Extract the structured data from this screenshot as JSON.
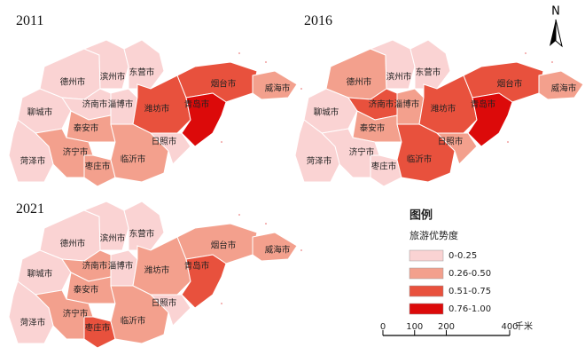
{
  "maps": [
    {
      "year": "2011",
      "cities": [
        {
          "name": "德州市",
          "class": 0
        },
        {
          "name": "滨州市",
          "class": 0
        },
        {
          "name": "东营市",
          "class": 0
        },
        {
          "name": "聊城市",
          "class": 0
        },
        {
          "name": "济南市",
          "class": 0
        },
        {
          "name": "淄博市",
          "class": 0
        },
        {
          "name": "潍坊市",
          "class": 2
        },
        {
          "name": "烟台市",
          "class": 2
        },
        {
          "name": "威海市",
          "class": 1
        },
        {
          "name": "青岛市",
          "class": 3
        },
        {
          "name": "泰安市",
          "class": 1
        },
        {
          "name": "济宁市",
          "class": 1
        },
        {
          "name": "枣庄市",
          "class": 1
        },
        {
          "name": "临沂市",
          "class": 1
        },
        {
          "name": "日照市",
          "class": 0
        },
        {
          "name": "菏泽市",
          "class": 0
        }
      ]
    },
    {
      "year": "2016",
      "cities": [
        {
          "name": "德州市",
          "class": 1
        },
        {
          "name": "滨州市",
          "class": 0
        },
        {
          "name": "东营市",
          "class": 0
        },
        {
          "name": "聊城市",
          "class": 0
        },
        {
          "name": "济南市",
          "class": 2
        },
        {
          "name": "淄博市",
          "class": 1
        },
        {
          "name": "潍坊市",
          "class": 2
        },
        {
          "name": "烟台市",
          "class": 2
        },
        {
          "name": "威海市",
          "class": 1
        },
        {
          "name": "青岛市",
          "class": 3
        },
        {
          "name": "泰安市",
          "class": 1
        },
        {
          "name": "济宁市",
          "class": 0
        },
        {
          "name": "枣庄市",
          "class": 0
        },
        {
          "name": "临沂市",
          "class": 2
        },
        {
          "name": "日照市",
          "class": 1
        },
        {
          "name": "菏泽市",
          "class": 0
        }
      ]
    },
    {
      "year": "2021",
      "cities": [
        {
          "name": "德州市",
          "class": 0
        },
        {
          "name": "滨州市",
          "class": 0
        },
        {
          "name": "东营市",
          "class": 0
        },
        {
          "name": "聊城市",
          "class": 0
        },
        {
          "name": "济南市",
          "class": 1
        },
        {
          "name": "淄博市",
          "class": 0
        },
        {
          "name": "潍坊市",
          "class": 1
        },
        {
          "name": "烟台市",
          "class": 1
        },
        {
          "name": "威海市",
          "class": 1
        },
        {
          "name": "青岛市",
          "class": 2
        },
        {
          "name": "泰安市",
          "class": 1
        },
        {
          "name": "济宁市",
          "class": 1
        },
        {
          "name": "枣庄市",
          "class": 2
        },
        {
          "name": "临沂市",
          "class": 1
        },
        {
          "name": "日照市",
          "class": 0
        },
        {
          "name": "菏泽市",
          "class": 0
        }
      ]
    }
  ],
  "legend": {
    "title": "图例",
    "subtitle": "旅游优势度",
    "classes": [
      {
        "label": "0-0.25",
        "color": "#fad3d3"
      },
      {
        "label": "0.26-0.50",
        "color": "#f3a08d"
      },
      {
        "label": "0.51-0.75",
        "color": "#e8513d"
      },
      {
        "label": "0.76-1.00",
        "color": "#dc0a0a"
      }
    ]
  },
  "scale_bar": {
    "ticks": [
      0,
      100,
      200,
      400
    ],
    "unit": "千米"
  },
  "north": "N"
}
